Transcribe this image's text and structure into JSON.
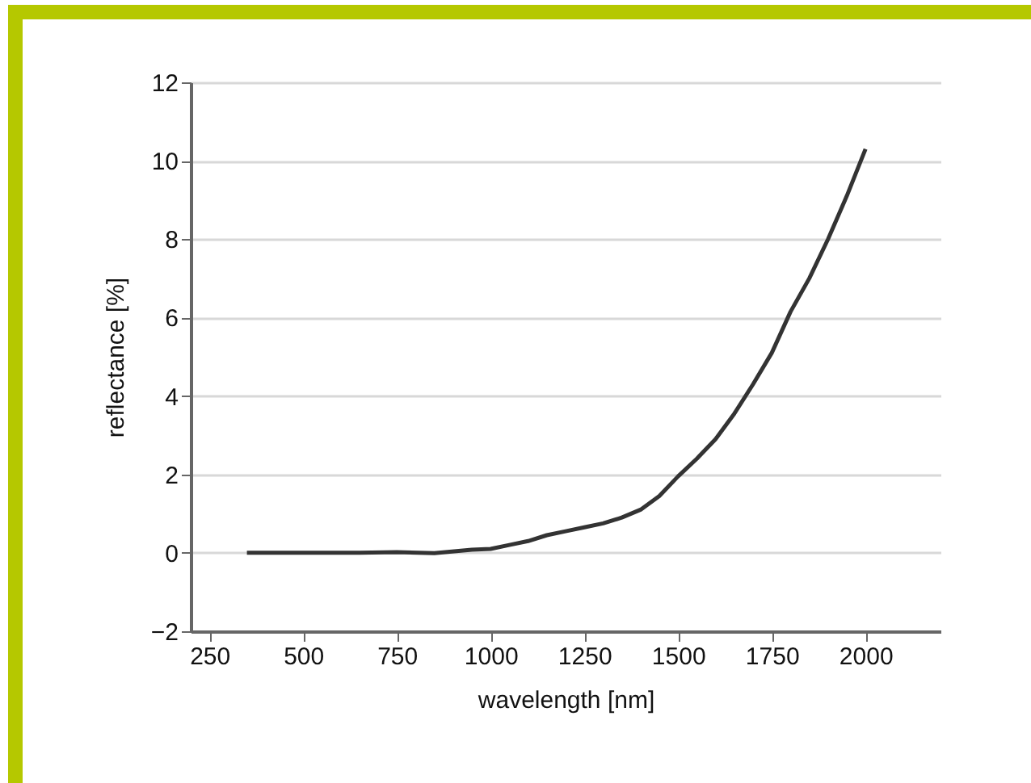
{
  "chart_data": {
    "type": "line",
    "xlabel": "wavelength [nm]",
    "ylabel": "reflectance [%]",
    "x": [
      350,
      500,
      650,
      750,
      850,
      950,
      1000,
      1050,
      1100,
      1150,
      1200,
      1250,
      1300,
      1350,
      1400,
      1450,
      1500,
      1550,
      1600,
      1650,
      1700,
      1750,
      1800,
      1850,
      1900,
      1950,
      2000
    ],
    "series": [
      {
        "color": "#333333",
        "values": [
          0,
          0,
          0,
          0.02,
          -0.01,
          0.08,
          0.1,
          0.2,
          0.3,
          0.45,
          0.55,
          0.65,
          0.75,
          0.9,
          1.1,
          1.45,
          1.95,
          2.4,
          2.9,
          3.55,
          4.3,
          5.1,
          6.15,
          7.0,
          8.0,
          9.1,
          10.3
        ]
      }
    ],
    "xlim": [
      200,
      2200
    ],
    "xticks": [
      250,
      500,
      750,
      1000,
      1250,
      1500,
      1750,
      2000
    ],
    "ylim": [
      -2,
      12
    ],
    "yticks": [
      -2,
      0,
      2,
      4,
      6,
      8,
      10,
      12
    ],
    "grid": "y",
    "line_style": "solid"
  }
}
